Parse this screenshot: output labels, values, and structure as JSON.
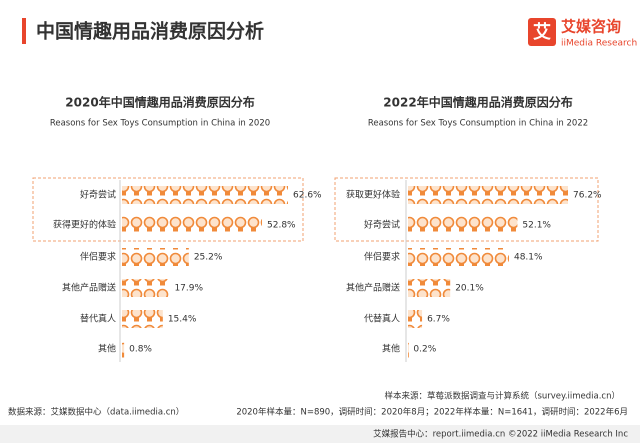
{
  "header": {
    "title": "中国情趣用品消费原因分析",
    "logo_icon": "艾",
    "logo_cn": "艾媒咨询",
    "logo_en": "iiMedia Research"
  },
  "chart_data": [
    {
      "type": "bar",
      "orientation": "horizontal",
      "title": "2020年中国情趣用品消费原因分布",
      "subtitle": "Reasons for Sex Toys Consumption in China in 2020",
      "categories": [
        "好奇尝试",
        "获得更好的体验",
        "伴侣要求",
        "其他产品赠送",
        "替代真人",
        "其他"
      ],
      "values": [
        62.6,
        52.8,
        25.2,
        17.9,
        15.4,
        0.8
      ],
      "value_labels": [
        "62.6%",
        "52.8%",
        "25.2%",
        "17.9%",
        "15.4%",
        "0.8%"
      ],
      "color": "#f08a3a"
    },
    {
      "type": "bar",
      "orientation": "horizontal",
      "title": "2022年中国情趣用品消费原因分布",
      "subtitle": "Reasons for Sex Toys Consumption in China in 2022",
      "categories": [
        "获取更好体验",
        "好奇尝试",
        "伴侣要求",
        "其他产品赠送",
        "代替真人",
        "其他"
      ],
      "values": [
        76.2,
        52.1,
        48.1,
        20.1,
        6.7,
        0.2
      ],
      "value_labels": [
        "76.2%",
        "52.1%",
        "48.1%",
        "20.1%",
        "6.7%",
        "0.2%"
      ],
      "color": "#f08a3a"
    }
  ],
  "footer": {
    "sample_source": "样本来源：草莓派数据调查与计算系统（survey.iimedia.cn）",
    "sample_size": "2020年样本量：N=890，调研时间：2020年8月；2022年样本量：N=1641，调研时间：2022年6月",
    "data_source": "数据来源：艾媒数据中心（data.iimedia.cn）",
    "report_center": "艾媒报告中心：report.iimedia.cn ©2022 iiMedia Research Inc"
  }
}
